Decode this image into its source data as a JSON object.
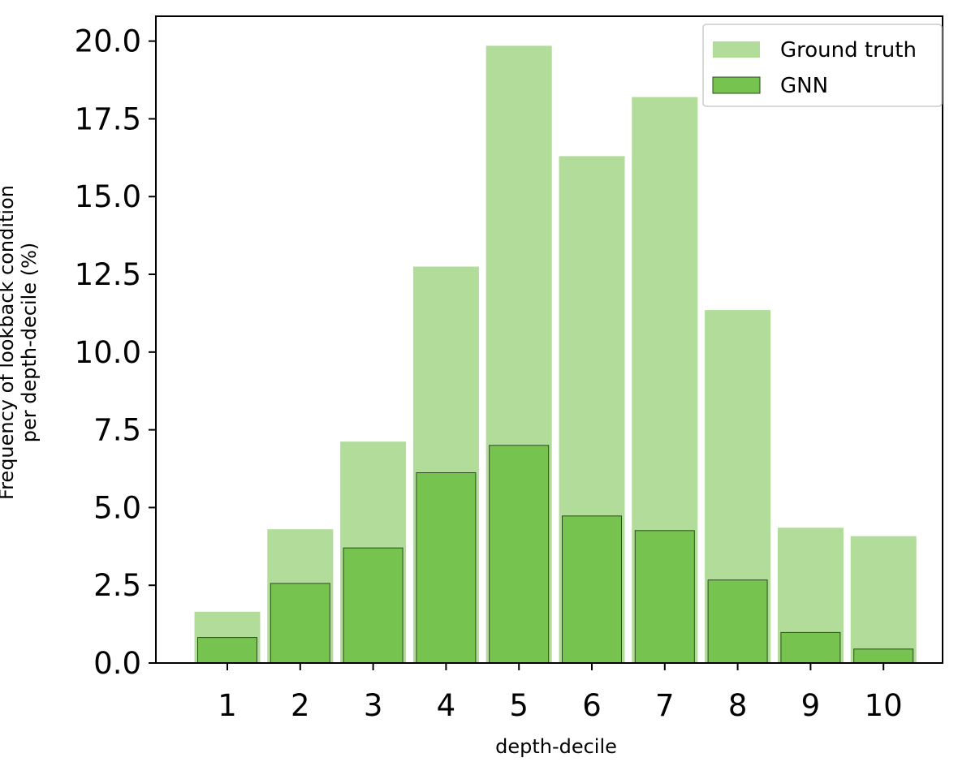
{
  "chart_data": {
    "type": "bar",
    "title": "",
    "xlabel": "depth-decile",
    "ylabel_lines": [
      "Frequency of lookback condition",
      "per depth-decile (%)"
    ],
    "categories": [
      "1",
      "2",
      "3",
      "4",
      "5",
      "6",
      "7",
      "8",
      "9",
      "10"
    ],
    "yticks": [
      "0.0",
      "2.5",
      "5.0",
      "7.5",
      "10.0",
      "12.5",
      "15.0",
      "17.5",
      "20.0"
    ],
    "ylim": [
      0,
      20.8
    ],
    "grid": false,
    "legend_position": "top-right",
    "series": [
      {
        "name": "Ground truth",
        "color": "#b1dc9a",
        "values": [
          1.65,
          4.3,
          7.12,
          12.75,
          19.85,
          16.3,
          18.2,
          11.35,
          4.35,
          4.08
        ]
      },
      {
        "name": "GNN",
        "color": "#77c350",
        "edge_color": "#2d4a1f",
        "values": [
          0.82,
          2.56,
          3.7,
          6.12,
          7.0,
          4.73,
          4.26,
          2.67,
          0.98,
          0.45
        ]
      }
    ]
  }
}
